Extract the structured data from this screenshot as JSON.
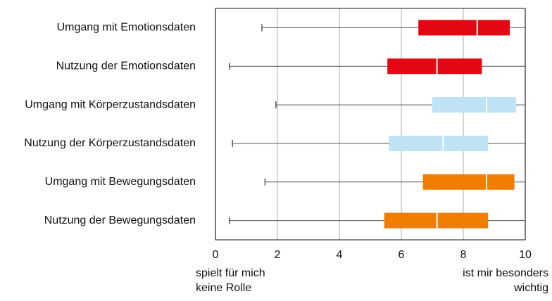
{
  "chart_data": {
    "type": "box",
    "categories": [
      "Umgang mit Emotionsdaten",
      "Nutzung der Emotionsdaten",
      "Umgang mit Körperzustandsdaten",
      "Nutzung der Körperzustandsdaten",
      "Umgang mit Bewegungsdaten",
      "Nutzung der Bewegungsdaten"
    ],
    "boxes": [
      {
        "min": 1.5,
        "q1": 6.55,
        "median": 8.45,
        "q3": 9.5,
        "max": 10,
        "color": "#e30613"
      },
      {
        "min": 0.45,
        "q1": 5.55,
        "median": 7.15,
        "q3": 8.6,
        "max": 10,
        "color": "#e30613"
      },
      {
        "min": 1.95,
        "q1": 7.0,
        "median": 8.75,
        "q3": 9.7,
        "max": 10,
        "color": "#bde3f5"
      },
      {
        "min": 0.55,
        "q1": 5.6,
        "median": 7.35,
        "q3": 8.8,
        "max": 10,
        "color": "#bde3f5"
      },
      {
        "min": 1.6,
        "q1": 6.7,
        "median": 8.75,
        "q3": 9.65,
        "max": 10,
        "color": "#f07d00"
      },
      {
        "min": 0.45,
        "q1": 5.45,
        "median": 7.15,
        "q3": 8.8,
        "max": 10,
        "color": "#f07d00"
      }
    ],
    "xlim": [
      0,
      10
    ],
    "xticks": [
      0,
      2,
      4,
      6,
      8,
      10
    ],
    "grid": true,
    "x_label_left": [
      "spielt für mich",
      "keine Rolle"
    ],
    "x_label_right": [
      "ist mir besonders",
      "wichtig"
    ]
  }
}
